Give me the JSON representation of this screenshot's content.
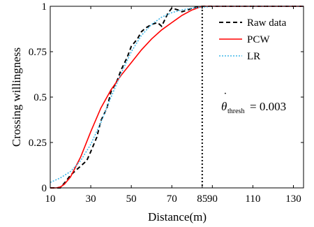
{
  "chart_data": {
    "type": "line",
    "xlabel": "Distance(m)",
    "ylabel": "Crossing willingness",
    "xlim": [
      10,
      135
    ],
    "ylim": [
      0,
      1
    ],
    "xticks": [
      "10",
      "30",
      "50",
      "70",
      "85",
      "90",
      "110",
      "130"
    ],
    "yticks": [
      "0",
      "0.25",
      "0.5",
      "0.75",
      "1"
    ],
    "threshold_x": 85,
    "annotation": {
      "symbol": "θ",
      "subscript": "thresh",
      "value_text": "= 0.003"
    },
    "legend_position": "top-right",
    "series": [
      {
        "name": "Raw data",
        "style": "dashed",
        "color": "#000000",
        "x": [
          10,
          15,
          18,
          20,
          24,
          28,
          30,
          33,
          35,
          38,
          40,
          43,
          45,
          48,
          50,
          53,
          55,
          57,
          60,
          63,
          65,
          68,
          70,
          73,
          75,
          78,
          80,
          82,
          85,
          90,
          100,
          110,
          120,
          130,
          135
        ],
        "y": [
          0,
          0,
          0.04,
          0.07,
          0.11,
          0.15,
          0.2,
          0.28,
          0.37,
          0.44,
          0.53,
          0.59,
          0.65,
          0.72,
          0.78,
          0.82,
          0.86,
          0.88,
          0.9,
          0.91,
          0.89,
          0.96,
          0.99,
          0.98,
          0.97,
          0.98,
          0.99,
          0.995,
          1,
          1,
          1,
          1,
          1,
          1,
          1
        ]
      },
      {
        "name": "PCW",
        "style": "solid",
        "color": "#ff0000",
        "x": [
          10,
          13,
          15,
          17,
          20,
          25,
          30,
          35,
          40,
          45,
          50,
          55,
          60,
          65,
          70,
          75,
          80,
          85,
          90,
          100,
          110,
          120,
          130,
          135
        ],
        "y": [
          0,
          0,
          0.005,
          0.02,
          0.06,
          0.17,
          0.31,
          0.44,
          0.54,
          0.62,
          0.69,
          0.76,
          0.82,
          0.87,
          0.91,
          0.95,
          0.98,
          1,
          1,
          1,
          1,
          1,
          1,
          1
        ]
      },
      {
        "name": "LR",
        "style": "dotted",
        "color": "#3fb7e8",
        "x": [
          10,
          15,
          20,
          25,
          30,
          35,
          40,
          45,
          50,
          55,
          60,
          65,
          70,
          75,
          80,
          85,
          90,
          100,
          110,
          120,
          130,
          135
        ],
        "y": [
          0.03,
          0.055,
          0.09,
          0.15,
          0.24,
          0.36,
          0.5,
          0.63,
          0.75,
          0.84,
          0.9,
          0.94,
          0.965,
          0.98,
          0.99,
          0.995,
          1,
          1,
          1,
          1,
          1,
          1
        ]
      }
    ]
  }
}
